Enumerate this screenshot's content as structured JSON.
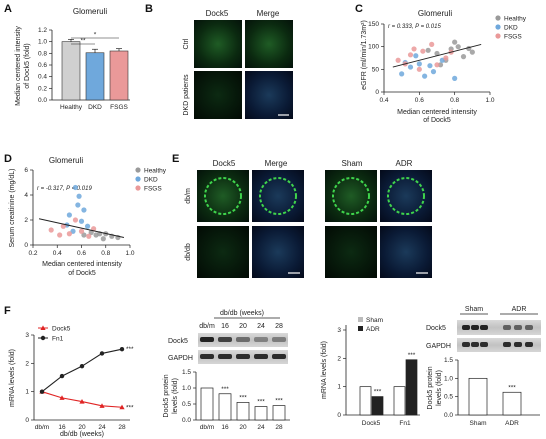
{
  "colors": {
    "healthy": "#9a9a9a",
    "dkd": "#6fa8dc",
    "fsgs": "#ea9999",
    "bar_ctrl": "#d0d0d0",
    "dock5_line": "#e02424",
    "fn1_line": "#222222"
  },
  "panels": {
    "a": {
      "letter": "A",
      "ylabel_line1": "Median centered intensity",
      "ylabel_line2": "of Dock5 (fold)"
    },
    "b": {
      "letter": "B",
      "col1": "Dock5",
      "col2": "Merge",
      "row1": "Ctrl",
      "row2": "DKD patients"
    },
    "c": {
      "letter": "C",
      "xlabel_line1": "Median centered intensity",
      "xlabel_line2": "of Dock5"
    },
    "d": {
      "letter": "D",
      "xlabel_line1": "Median centered intensity",
      "xlabel_line2": "of Dock5"
    },
    "e": {
      "letter": "E",
      "col1": "Dock5",
      "col2": "Merge",
      "col3": "Sham",
      "col4": "ADR",
      "row1": "db/m",
      "row2": "db/db"
    },
    "f": {
      "letter": "F",
      "blot1_header": "db/db (weeks)",
      "blot1_lanes": [
        "db/m",
        "16",
        "20",
        "24",
        "28"
      ],
      "blot1_row1": "Dock5",
      "blot1_row2": "GAPDH",
      "f2_ylabel_line1": "Dock5 protein",
      "f2_ylabel_line2": "levels (fold)",
      "blot2_col1": "Sham",
      "blot2_col2": "ADR",
      "blot2_row1": "Dock5",
      "blot2_row2": "GAPDH",
      "f4_ylabel_line1": "Dock5 protein",
      "f4_ylabel_line2": "levels (fold)"
    }
  },
  "chart_data": [
    {
      "type": "bar",
      "title": "Glomeruli",
      "categories": [
        "Healthy",
        "DKD",
        "FSGS"
      ],
      "values": [
        1.0,
        0.81,
        0.84
      ],
      "errors": [
        0.04,
        0.06,
        0.04
      ],
      "ylim": [
        0.0,
        1.2
      ],
      "yticks": [
        "0.0",
        "0.2",
        "0.4",
        "0.6",
        "0.8",
        "1.0",
        "1.2"
      ],
      "significance": [
        {
          "from": 0,
          "to": 1,
          "label": "**"
        },
        {
          "from": 0,
          "to": 2,
          "label": "*"
        }
      ]
    },
    {
      "type": "scatter",
      "title": "Glomeruli",
      "ylabel": "eGFR (ml/min/1.73m²)",
      "xlim": [
        0.4,
        1.0
      ],
      "ylim": [
        0,
        150
      ],
      "xticks": [
        "0.4",
        "0.6",
        "0.8",
        "1.0"
      ],
      "yticks": [
        "0",
        "50",
        "100",
        "150"
      ],
      "annotation": "r = 0.333, P = 0.015",
      "legend": [
        "Healthy",
        "DKD",
        "FSGS"
      ],
      "legend_position": "top-right",
      "fit": {
        "x": [
          0.45,
          0.95
        ],
        "y": [
          55,
          105
        ]
      },
      "series": [
        {
          "name": "Healthy",
          "x": [
            0.7,
            0.78,
            0.82,
            0.85,
            0.65,
            0.9,
            0.75,
            0.8,
            0.88,
            0.72
          ],
          "y": [
            85,
            95,
            100,
            78,
            92,
            88,
            70,
            110,
            96,
            60
          ]
        },
        {
          "name": "DKD",
          "x": [
            0.5,
            0.55,
            0.6,
            0.68,
            0.73,
            0.58,
            0.63,
            0.8,
            0.52,
            0.66
          ],
          "y": [
            40,
            55,
            62,
            45,
            70,
            80,
            35,
            30,
            65,
            58
          ]
        },
        {
          "name": "FSGS",
          "x": [
            0.48,
            0.55,
            0.62,
            0.7,
            0.75,
            0.57,
            0.67,
            0.6,
            0.78,
            0.52
          ],
          "y": [
            70,
            82,
            90,
            60,
            75,
            95,
            105,
            50,
            88,
            62
          ]
        }
      ]
    },
    {
      "type": "scatter",
      "title": "Glomeruli",
      "ylabel": "Serum creatinine (mg/dL)",
      "xlim": [
        0.2,
        1.0
      ],
      "ylim": [
        0,
        6
      ],
      "xticks": [
        "0.2",
        "0.4",
        "0.6",
        "0.8",
        "1.0"
      ],
      "yticks": [
        "0",
        "2",
        "4",
        "6"
      ],
      "annotation": "r = -0.317, P = 0.019",
      "legend": [
        "Healthy",
        "DKD",
        "FSGS"
      ],
      "legend_position": "top-right",
      "fit": {
        "x": [
          0.25,
          0.95
        ],
        "y": [
          2.1,
          0.6
        ]
      },
      "series": [
        {
          "name": "Healthy",
          "x": [
            0.72,
            0.8,
            0.85,
            0.68,
            0.9,
            0.75,
            0.78,
            0.62
          ],
          "y": [
            0.8,
            0.9,
            0.7,
            1.0,
            0.6,
            0.9,
            0.5,
            0.8
          ]
        },
        {
          "name": "DKD",
          "x": [
            0.55,
            0.58,
            0.62,
            0.5,
            0.6,
            0.48,
            0.65,
            0.57,
            0.53
          ],
          "y": [
            4.6,
            3.9,
            2.8,
            2.4,
            1.9,
            1.6,
            1.5,
            3.2,
            1.1
          ]
        },
        {
          "name": "FSGS",
          "x": [
            0.35,
            0.45,
            0.5,
            0.6,
            0.55,
            0.42,
            0.66,
            0.7
          ],
          "y": [
            1.2,
            1.5,
            0.9,
            1.1,
            2.0,
            0.8,
            0.7,
            1.3
          ]
        }
      ]
    },
    {
      "type": "line",
      "ylabel": "mRNA levels (fold)",
      "xlabel": "db/db (weeks)",
      "categories": [
        "db/m",
        "16",
        "20",
        "24",
        "28"
      ],
      "ylim": [
        0,
        3
      ],
      "yticks": [
        "0",
        "1",
        "2",
        "3"
      ],
      "legend_position": "top-left",
      "series": [
        {
          "name": "Dock5",
          "values": [
            1.0,
            0.78,
            0.65,
            0.5,
            0.45
          ],
          "end_label": "***"
        },
        {
          "name": "Fn1",
          "values": [
            1.0,
            1.55,
            1.9,
            2.35,
            2.5
          ],
          "end_label": "***"
        }
      ]
    },
    {
      "type": "bar",
      "categories": [
        "db/m",
        "16",
        "20",
        "24",
        "28"
      ],
      "values": [
        1.0,
        0.82,
        0.55,
        0.42,
        0.45
      ],
      "ylim": [
        0.0,
        1.5
      ],
      "yticks": [
        "0.0",
        "0.5",
        "1.0",
        "1.5"
      ],
      "labels": [
        "",
        "***",
        "***",
        "***",
        "***"
      ]
    },
    {
      "type": "bar",
      "ylabel": "mRNA levels (fold)",
      "categories": [
        "Dock5",
        "Fn1"
      ],
      "ylim": [
        0,
        3
      ],
      "yticks": [
        "0",
        "1",
        "2",
        "3"
      ],
      "legend_position": "top",
      "series": [
        {
          "name": "Sham",
          "values": [
            1.0,
            1.0
          ],
          "labels": [
            "",
            ""
          ]
        },
        {
          "name": "ADR",
          "values": [
            0.65,
            1.95
          ],
          "labels": [
            "***",
            "***"
          ]
        }
      ]
    },
    {
      "type": "bar",
      "categories": [
        "Sham",
        "ADR"
      ],
      "values": [
        1.0,
        0.62
      ],
      "ylim": [
        0.0,
        1.5
      ],
      "yticks": [
        "0.0",
        "0.5",
        "1.0",
        "1.5"
      ],
      "labels": [
        "",
        "***"
      ]
    }
  ]
}
